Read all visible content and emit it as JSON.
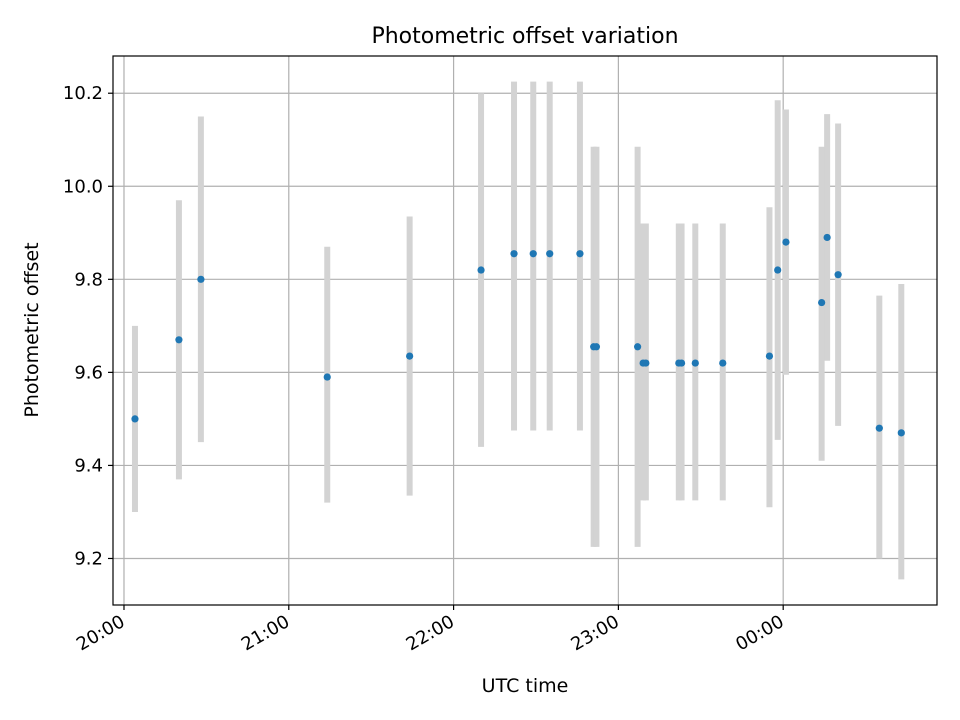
{
  "chart_data": {
    "type": "scatter",
    "title": "Photometric offset variation",
    "xlabel": "UTC time",
    "ylabel": "Photometric offset",
    "xlim": [
      "19:56",
      "00:56"
    ],
    "ylim": [
      9.1,
      10.28
    ],
    "x_ticks": [
      {
        "time": "20:00",
        "label": "20:00"
      },
      {
        "time": "21:00",
        "label": "21:00"
      },
      {
        "time": "22:00",
        "label": "22:00"
      },
      {
        "time": "23:00",
        "label": "23:00"
      },
      {
        "time": "00:00",
        "label": "00:00"
      }
    ],
    "y_ticks": [
      {
        "value": 9.2,
        "label": "9.2"
      },
      {
        "value": 9.4,
        "label": "9.4"
      },
      {
        "value": 9.6,
        "label": "9.6"
      },
      {
        "value": 9.8,
        "label": "9.8"
      },
      {
        "value": 10.0,
        "label": "10.0"
      },
      {
        "value": 10.2,
        "label": "10.2"
      }
    ],
    "grid": true,
    "colors": {
      "marker": "#1f77b4",
      "errorbar": "#d3d3d3",
      "grid": "#b0b0b0"
    },
    "points": [
      {
        "time": "20:04",
        "y": 9.5,
        "y_low": 9.3,
        "y_high": 9.7
      },
      {
        "time": "20:20",
        "y": 9.67,
        "y_low": 9.37,
        "y_high": 9.97
      },
      {
        "time": "20:28",
        "y": 9.8,
        "y_low": 9.45,
        "y_high": 10.15
      },
      {
        "time": "21:14",
        "y": 9.59,
        "y_low": 9.32,
        "y_high": 9.87
      },
      {
        "time": "21:44",
        "y": 9.635,
        "y_low": 9.335,
        "y_high": 9.935
      },
      {
        "time": "22:10",
        "y": 9.82,
        "y_low": 9.44,
        "y_high": 10.2
      },
      {
        "time": "22:22",
        "y": 9.855,
        "y_low": 9.475,
        "y_high": 10.225
      },
      {
        "time": "22:29",
        "y": 9.855,
        "y_low": 9.475,
        "y_high": 10.225
      },
      {
        "time": "22:35",
        "y": 9.855,
        "y_low": 9.475,
        "y_high": 10.225
      },
      {
        "time": "22:46",
        "y": 9.855,
        "y_low": 9.475,
        "y_high": 10.225
      },
      {
        "time": "22:51",
        "y": 9.655,
        "y_low": 9.225,
        "y_high": 10.085
      },
      {
        "time": "22:52",
        "y": 9.655,
        "y_low": 9.225,
        "y_high": 10.085
      },
      {
        "time": "23:07",
        "y": 9.655,
        "y_low": 9.225,
        "y_high": 10.085
      },
      {
        "time": "23:09",
        "y": 9.62,
        "y_low": 9.325,
        "y_high": 9.92
      },
      {
        "time": "23:10",
        "y": 9.62,
        "y_low": 9.325,
        "y_high": 9.92
      },
      {
        "time": "23:22",
        "y": 9.62,
        "y_low": 9.325,
        "y_high": 9.92
      },
      {
        "time": "23:23",
        "y": 9.62,
        "y_low": 9.325,
        "y_high": 9.92
      },
      {
        "time": "23:28",
        "y": 9.62,
        "y_low": 9.325,
        "y_high": 9.92
      },
      {
        "time": "23:38",
        "y": 9.62,
        "y_low": 9.325,
        "y_high": 9.92
      },
      {
        "time": "23:55",
        "y": 9.635,
        "y_low": 9.31,
        "y_high": 9.955
      },
      {
        "time": "23:58",
        "y": 9.82,
        "y_low": 9.455,
        "y_high": 10.185
      },
      {
        "time": "00:01",
        "y": 9.88,
        "y_low": 9.595,
        "y_high": 10.165
      },
      {
        "time": "00:14",
        "y": 9.75,
        "y_low": 9.41,
        "y_high": 10.085
      },
      {
        "time": "00:16",
        "y": 9.89,
        "y_low": 9.625,
        "y_high": 10.155
      },
      {
        "time": "00:20",
        "y": 9.81,
        "y_low": 9.485,
        "y_high": 10.135
      },
      {
        "time": "00:35",
        "y": 9.48,
        "y_low": 9.2,
        "y_high": 9.765
      },
      {
        "time": "00:43",
        "y": 9.47,
        "y_low": 9.155,
        "y_high": 9.79
      }
    ]
  }
}
